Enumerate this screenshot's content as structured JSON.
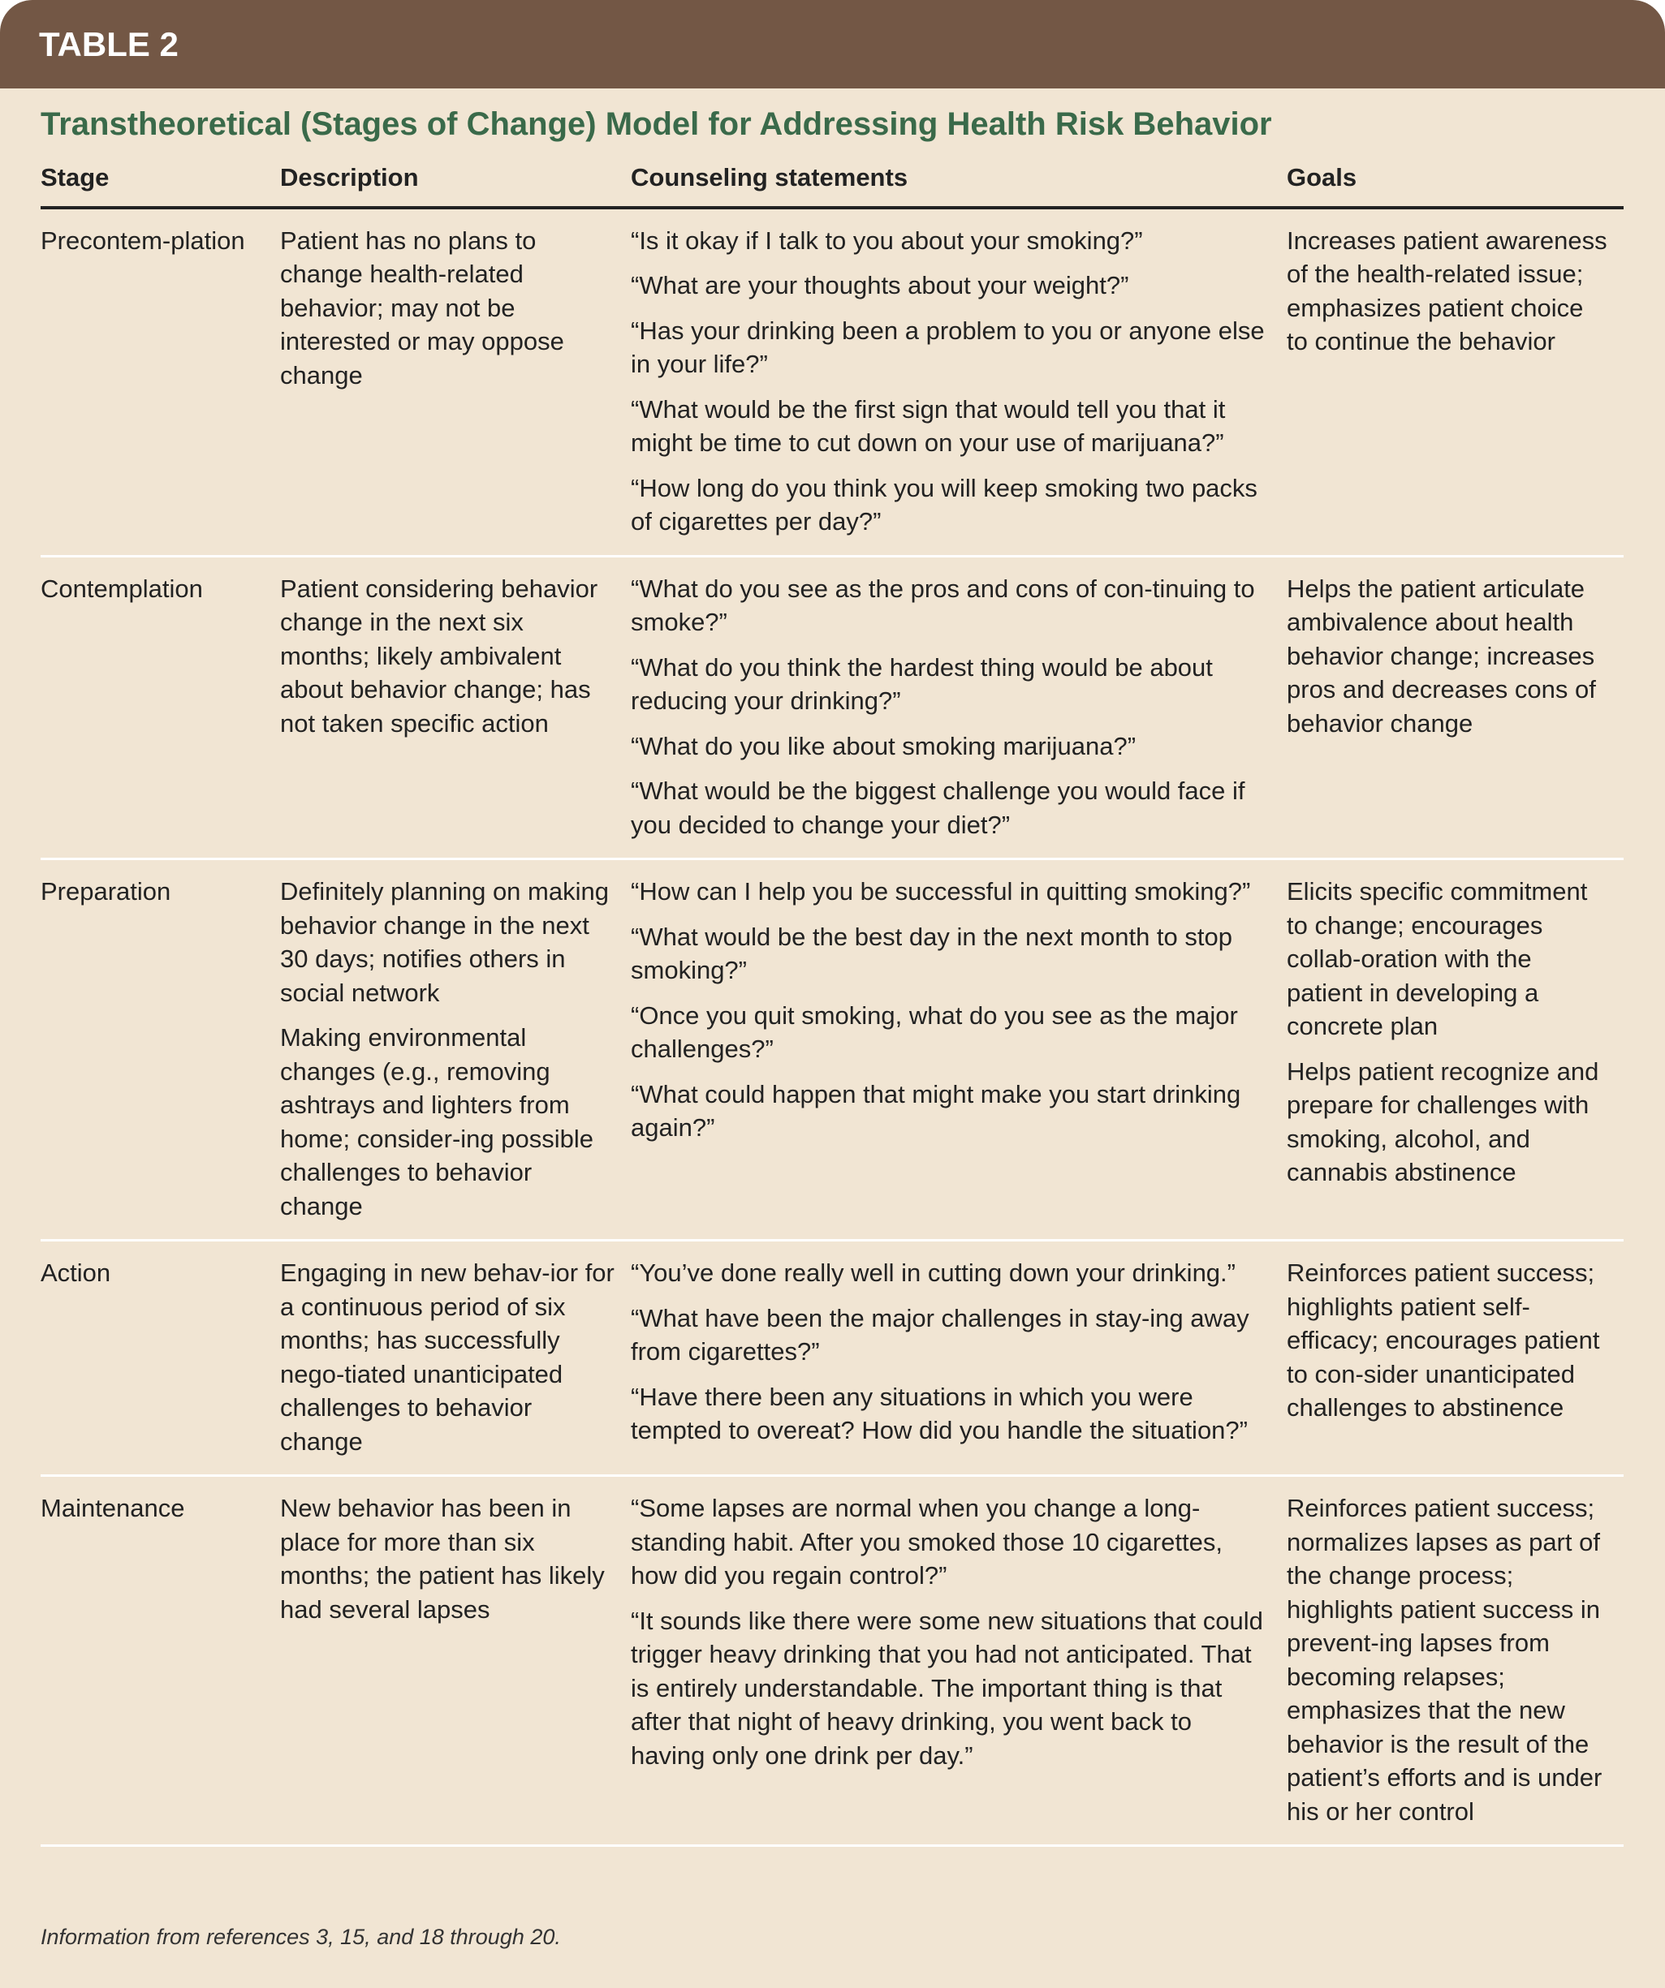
{
  "header": {
    "label": "TABLE 2"
  },
  "title": "Transtheoretical (Stages of Change) Model for Addressing Health Risk Behavior",
  "columns": [
    "Stage",
    "Description",
    "Counseling statements",
    "Goals"
  ],
  "rows": [
    {
      "stage": "Precontem-plation",
      "description": [
        "Patient has no plans to change health-related behavior; may not be interested or may oppose change"
      ],
      "statements": [
        "“Is it okay if I talk to you about your smoking?”",
        "“What are your thoughts about your weight?”",
        "“Has your drinking been a problem to you or anyone else in your life?”",
        "“What would be the first sign that would tell you that it might be time to cut down on your use of marijuana?”",
        "“How long do you think you will keep smoking two packs of cigarettes per day?”"
      ],
      "goals": [
        "Increases patient awareness of the health-related issue; emphasizes patient choice to continue the behavior"
      ]
    },
    {
      "stage": "Contemplation",
      "description": [
        "Patient considering behavior change in the next six months; likely ambivalent about behavior change; has not taken specific action"
      ],
      "statements": [
        "“What do you see as the pros and cons of con-tinuing to smoke?”",
        "“What do you think the hardest thing would be about reducing your drinking?”",
        "“What do you like about smoking marijuana?”",
        "“What would be the biggest challenge you would face if you decided to change your diet?”"
      ],
      "goals": [
        "Helps the patient articulate ambivalence about health behavior change; increases pros and decreases cons of behavior change"
      ]
    },
    {
      "stage": "Preparation",
      "description": [
        "Definitely planning on making behavior change in the next 30 days; notifies others in social network",
        "Making environmental changes (e.g., removing ashtrays and lighters from home; consider-ing possible challenges to behavior change"
      ],
      "statements": [
        "“How can I help you be successful in quitting smoking?”",
        "“What would be the best day in the next month to stop smoking?”",
        "“Once you quit smoking, what do you see as the major challenges?”",
        "“What could happen that might make you start drinking again?”"
      ],
      "goals": [
        "Elicits specific commitment to change; encourages collab-oration with the patient in developing a concrete plan",
        "Helps patient recognize and prepare for challenges with smoking, alcohol, and cannabis abstinence"
      ]
    },
    {
      "stage": "Action",
      "description": [
        "Engaging in new behav-ior for a continuous period of six months; has successfully nego-tiated unanticipated challenges to behavior change"
      ],
      "statements": [
        "“You’ve done really well in cutting down your drinking.”",
        "“What have been the major challenges in stay-ing away from cigarettes?”",
        "“Have there been any situations in which you were tempted to overeat? How did you handle the situation?”"
      ],
      "goals": [
        "Reinforces patient success; highlights patient self-efficacy; encourages patient to con-sider unanticipated challenges to abstinence"
      ]
    },
    {
      "stage": "Maintenance",
      "description": [
        "New behavior has been in place for more than six months; the patient has likely had several lapses"
      ],
      "statements": [
        "“Some lapses are normal when you change a long-standing habit. After you smoked those 10 cigarettes, how did you regain control?”",
        "“It sounds like there were some new situations that could trigger heavy drinking that you had not anticipated. That is entirely understandable. The important thing is that after that night of heavy drinking, you went back to having only one drink per day.”"
      ],
      "goals": [
        "Reinforces patient success; normalizes lapses as part of the change process; highlights patient success in prevent-ing lapses from becoming relapses; emphasizes that the new behavior is the result of the patient’s efforts and is under his or her control"
      ]
    }
  ],
  "footnote": "Information from references 3, 15, and 18 through 20.",
  "colors": {
    "header_bg": "#735745",
    "background": "#f1e5d3",
    "title": "#3a6a4a"
  }
}
